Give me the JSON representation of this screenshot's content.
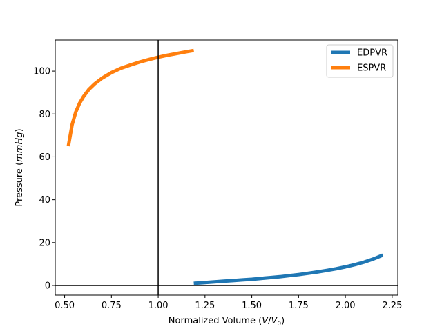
{
  "chart_data": {
    "type": "line",
    "title": "",
    "xlabel": {
      "prefix": "Normalized Volume (",
      "var": "V",
      "slash": "/",
      "base": "V",
      "sub": "0",
      "suffix": ")"
    },
    "ylabel": {
      "prefix": "Pressure (",
      "unit": "mmHg",
      "suffix": ")"
    },
    "xlim": [
      0.45,
      2.28
    ],
    "ylim": [
      -4.5,
      114.5
    ],
    "xticks": [
      0.5,
      0.75,
      1.0,
      1.25,
      1.5,
      1.75,
      2.0,
      2.25
    ],
    "xtick_labels": [
      "0.50",
      "0.75",
      "1.00",
      "1.25",
      "1.50",
      "1.75",
      "2.00",
      "2.25"
    ],
    "yticks": [
      0,
      20,
      40,
      60,
      80,
      100
    ],
    "ytick_labels": [
      "0",
      "20",
      "40",
      "60",
      "80",
      "100"
    ],
    "grid": false,
    "legend_position": "top-right",
    "reference_lines": {
      "vertical_x": 1.0,
      "horizontal_y": 0.0,
      "color": "#000000"
    },
    "series": [
      {
        "name": "EDPVR",
        "color": "#1f77b4",
        "x": [
          1.19,
          1.25,
          1.3,
          1.35,
          1.4,
          1.45,
          1.5,
          1.55,
          1.6,
          1.65,
          1.7,
          1.75,
          1.8,
          1.85,
          1.9,
          1.95,
          2.0,
          2.05,
          2.1,
          2.15,
          2.2
        ],
        "y": [
          1.0,
          1.4,
          1.7,
          2.0,
          2.3,
          2.6,
          2.9,
          3.3,
          3.7,
          4.1,
          4.6,
          5.1,
          5.7,
          6.3,
          7.0,
          7.8,
          8.7,
          9.7,
          10.9,
          12.4,
          14.2
        ]
      },
      {
        "name": "ESPVR",
        "color": "#ff7f0e",
        "x": [
          0.52,
          0.54,
          0.56,
          0.58,
          0.6,
          0.63,
          0.66,
          0.7,
          0.75,
          0.8,
          0.85,
          0.9,
          0.95,
          1.0,
          1.05,
          1.1,
          1.15,
          1.19
        ],
        "y": [
          65,
          75,
          81,
          85,
          88,
          91.5,
          94,
          96.7,
          99.3,
          101.3,
          102.8,
          104.2,
          105.4,
          106.5,
          107.4,
          108.2,
          109,
          109.6
        ]
      }
    ]
  }
}
